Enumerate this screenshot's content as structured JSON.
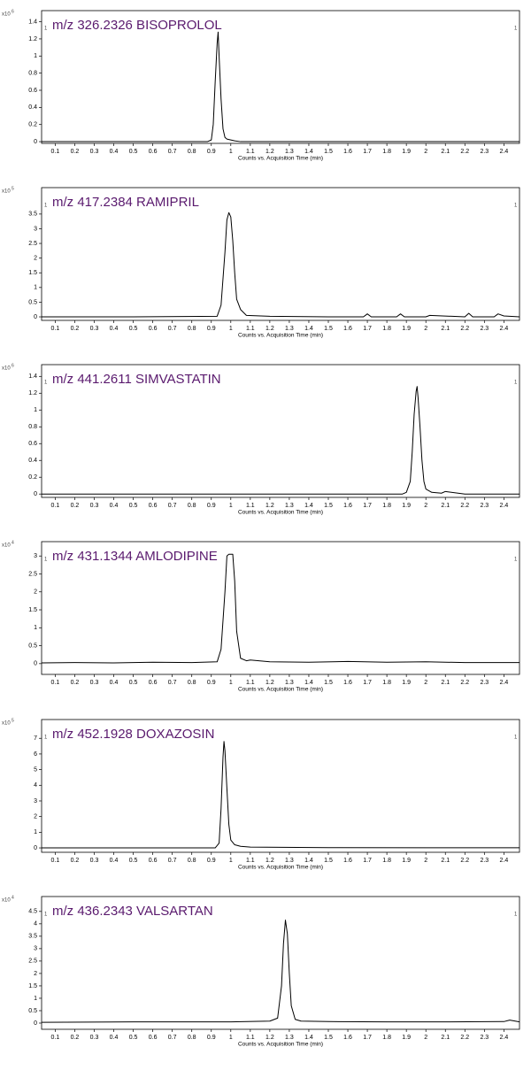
{
  "chart_data": [
    {
      "type": "line",
      "title": "m/z 326.2326 BISOPROLOL",
      "y_scale_label": "x10",
      "y_scale_exponent": 6,
      "trace_id": 1,
      "xlabel": "Counts vs. Acquisition Time (min)",
      "xlim": [
        0.03,
        2.48
      ],
      "xticks": [
        0.1,
        0.2,
        0.3,
        0.4,
        0.5,
        0.6,
        0.7,
        0.8,
        0.9,
        1,
        1.1,
        1.2,
        1.3,
        1.4,
        1.5,
        1.6,
        1.7,
        1.8,
        1.9,
        2,
        2.1,
        2.2,
        2.3,
        2.4
      ],
      "ylim": [
        -0.02,
        1.53
      ],
      "yticks": [
        0,
        0.2,
        0.4,
        0.6,
        0.8,
        1,
        1.2,
        1.4
      ],
      "series": [
        {
          "color": "#000000",
          "x": [
            0.03,
            0.5,
            0.88,
            0.9,
            0.91,
            0.92,
            0.93,
            0.935,
            0.94,
            0.95,
            0.96,
            0.97,
            0.98,
            1.0,
            1.02,
            1.05,
            1.2,
            1.6,
            2.0,
            2.48
          ],
          "values": [
            0,
            0,
            0,
            0.02,
            0.2,
            0.7,
            1.15,
            1.28,
            1.0,
            0.5,
            0.15,
            0.05,
            0.03,
            0.02,
            0.01,
            0,
            0,
            0,
            0,
            0
          ]
        }
      ]
    },
    {
      "type": "line",
      "title": "m/z 417.2384 RAMIPRIL",
      "y_scale_label": "x10",
      "y_scale_exponent": 5,
      "trace_id": 1,
      "xlabel": "Counts vs. Acquisition Time (min)",
      "xlim": [
        0.03,
        2.48
      ],
      "xticks": [
        0.1,
        0.2,
        0.3,
        0.4,
        0.5,
        0.6,
        0.7,
        0.8,
        0.9,
        1,
        1.1,
        1.2,
        1.3,
        1.4,
        1.5,
        1.6,
        1.7,
        1.8,
        1.9,
        2,
        2.1,
        2.2,
        2.3,
        2.4
      ],
      "ylim": [
        -0.12,
        4.4
      ],
      "yticks": [
        0,
        0.5,
        1,
        1.5,
        2,
        2.5,
        3,
        3.5
      ],
      "series": [
        {
          "color": "#000000",
          "x": [
            0.03,
            0.5,
            0.93,
            0.95,
            0.97,
            0.98,
            0.99,
            1.0,
            1.01,
            1.02,
            1.03,
            1.05,
            1.08,
            1.2,
            1.5,
            1.68,
            1.7,
            1.72,
            1.85,
            1.87,
            1.89,
            2.0,
            2.02,
            2.2,
            2.22,
            2.24,
            2.35,
            2.37,
            2.4,
            2.48
          ],
          "values": [
            0,
            0,
            0.02,
            0.4,
            2.2,
            3.3,
            3.55,
            3.4,
            2.6,
            1.5,
            0.6,
            0.25,
            0.05,
            0.02,
            0,
            0,
            0.1,
            0,
            0,
            0.1,
            0,
            0,
            0.05,
            0,
            0.12,
            0,
            0,
            0.1,
            0.03,
            0
          ]
        }
      ]
    },
    {
      "type": "line",
      "title": "m/z 441.2611 SIMVASTATIN",
      "y_scale_label": "x10",
      "y_scale_exponent": 6,
      "trace_id": 1,
      "xlabel": "Counts vs. Acquisition Time (min)",
      "xlim": [
        0.03,
        2.48
      ],
      "xticks": [
        0.1,
        0.2,
        0.3,
        0.4,
        0.5,
        0.6,
        0.7,
        0.8,
        0.9,
        1,
        1.1,
        1.2,
        1.3,
        1.4,
        1.5,
        1.6,
        1.7,
        1.8,
        1.9,
        2,
        2.1,
        2.2,
        2.3,
        2.4
      ],
      "ylim": [
        -0.04,
        1.54
      ],
      "yticks": [
        0,
        0.2,
        0.4,
        0.6,
        0.8,
        1,
        1.2,
        1.4
      ],
      "series": [
        {
          "color": "#000000",
          "x": [
            0.03,
            1.0,
            1.88,
            1.9,
            1.92,
            1.93,
            1.94,
            1.95,
            1.955,
            1.96,
            1.97,
            1.98,
            1.99,
            2.0,
            2.03,
            2.08,
            2.1,
            2.2,
            2.48
          ],
          "values": [
            0,
            0,
            0,
            0.02,
            0.15,
            0.5,
            0.95,
            1.22,
            1.28,
            1.15,
            0.8,
            0.4,
            0.15,
            0.06,
            0.02,
            0.01,
            0.03,
            0,
            0
          ]
        }
      ]
    },
    {
      "type": "line",
      "title": "m/z 431.1344 AMLODIPINE",
      "y_scale_label": "x10",
      "y_scale_exponent": 4,
      "trace_id": 1,
      "xlabel": "Counts vs. Acquisition Time (min)",
      "xlim": [
        0.03,
        2.48
      ],
      "xticks": [
        0.1,
        0.2,
        0.3,
        0.4,
        0.5,
        0.6,
        0.7,
        0.8,
        0.9,
        1,
        1.1,
        1.2,
        1.3,
        1.4,
        1.5,
        1.6,
        1.7,
        1.8,
        1.9,
        2,
        2.1,
        2.2,
        2.3,
        2.4
      ],
      "ylim": [
        -0.3,
        3.4
      ],
      "yticks": [
        0,
        0.5,
        1,
        1.5,
        2,
        2.5,
        3
      ],
      "series": [
        {
          "color": "#000000",
          "x": [
            0.03,
            0.2,
            0.4,
            0.6,
            0.8,
            0.93,
            0.95,
            0.97,
            0.98,
            0.99,
            1.01,
            1.02,
            1.03,
            1.05,
            1.08,
            1.1,
            1.2,
            1.4,
            1.6,
            1.8,
            2.0,
            2.2,
            2.48
          ],
          "values": [
            0.02,
            0.03,
            0.02,
            0.04,
            0.03,
            0.05,
            0.4,
            2.0,
            3.0,
            3.05,
            3.05,
            2.3,
            0.9,
            0.15,
            0.08,
            0.1,
            0.05,
            0.04,
            0.06,
            0.04,
            0.05,
            0.03,
            0.03
          ]
        }
      ]
    },
    {
      "type": "line",
      "title": "m/z 452.1928 DOXAZOSIN",
      "y_scale_label": "x10",
      "y_scale_exponent": 5,
      "trace_id": 1,
      "xlabel": "Counts vs. Acquisition Time (min)",
      "xlim": [
        0.03,
        2.48
      ],
      "xticks": [
        0.1,
        0.2,
        0.3,
        0.4,
        0.5,
        0.6,
        0.7,
        0.8,
        0.9,
        1,
        1.1,
        1.2,
        1.3,
        1.4,
        1.5,
        1.6,
        1.7,
        1.8,
        1.9,
        2,
        2.1,
        2.2,
        2.3,
        2.4
      ],
      "ylim": [
        -0.28,
        8.2
      ],
      "yticks": [
        0,
        1,
        2,
        3,
        4,
        5,
        6,
        7
      ],
      "series": [
        {
          "color": "#000000",
          "x": [
            0.03,
            0.5,
            0.92,
            0.94,
            0.95,
            0.96,
            0.965,
            0.97,
            0.98,
            0.99,
            1.0,
            1.02,
            1.05,
            1.1,
            1.5,
            2.0,
            2.48
          ],
          "values": [
            0,
            0,
            0,
            0.3,
            2.5,
            5.8,
            6.8,
            6.2,
            3.8,
            1.5,
            0.5,
            0.2,
            0.1,
            0.05,
            0.02,
            0.01,
            0.01
          ]
        }
      ]
    },
    {
      "type": "line",
      "title": "m/z 436.2343 VALSARTAN",
      "y_scale_label": "x10",
      "y_scale_exponent": 4,
      "trace_id": 1,
      "xlabel": "Counts vs. Acquisition Time (min)",
      "xlim": [
        0.03,
        2.48
      ],
      "xticks": [
        0.1,
        0.2,
        0.3,
        0.4,
        0.5,
        0.6,
        0.7,
        0.8,
        0.9,
        1,
        1.1,
        1.2,
        1.3,
        1.4,
        1.5,
        1.6,
        1.7,
        1.8,
        1.9,
        2,
        2.1,
        2.2,
        2.3,
        2.4
      ],
      "ylim": [
        -0.25,
        5.1
      ],
      "yticks": [
        0,
        0.5,
        1,
        1.5,
        2,
        2.5,
        3,
        3.5,
        4,
        4.5
      ],
      "series": [
        {
          "color": "#000000",
          "x": [
            0.03,
            0.5,
            1.0,
            1.2,
            1.24,
            1.26,
            1.27,
            1.28,
            1.29,
            1.3,
            1.31,
            1.33,
            1.36,
            1.5,
            1.8,
            2.1,
            2.4,
            2.43,
            2.48
          ],
          "values": [
            0.03,
            0.05,
            0.05,
            0.08,
            0.2,
            1.5,
            3.2,
            4.15,
            3.6,
            2.0,
            0.7,
            0.15,
            0.08,
            0.06,
            0.05,
            0.05,
            0.06,
            0.12,
            0.05
          ]
        }
      ]
    }
  ]
}
